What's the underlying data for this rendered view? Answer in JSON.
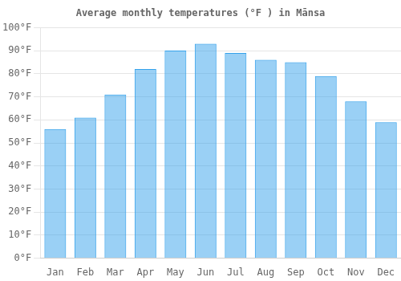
{
  "chart_data": {
    "type": "bar",
    "title": "Average monthly temperatures (°F ) in Mānsa",
    "categories": [
      "Jan",
      "Feb",
      "Mar",
      "Apr",
      "May",
      "Jun",
      "Jul",
      "Aug",
      "Sep",
      "Oct",
      "Nov",
      "Dec"
    ],
    "values": [
      56,
      61,
      71,
      82,
      90,
      93,
      89,
      86,
      85,
      79,
      68,
      59
    ],
    "ylim": [
      0,
      100
    ],
    "yticks": [
      {
        "value": 0,
        "label": "0°F"
      },
      {
        "value": 10,
        "label": "10°F"
      },
      {
        "value": 20,
        "label": "20°F"
      },
      {
        "value": 30,
        "label": "30°F"
      },
      {
        "value": 40,
        "label": "40°F"
      },
      {
        "value": 50,
        "label": "50°F"
      },
      {
        "value": 60,
        "label": "60°F"
      },
      {
        "value": 70,
        "label": "70°F"
      },
      {
        "value": 80,
        "label": "80°F"
      },
      {
        "value": 90,
        "label": "90°F"
      },
      {
        "value": 100,
        "label": "100°F"
      }
    ],
    "grid": true
  }
}
